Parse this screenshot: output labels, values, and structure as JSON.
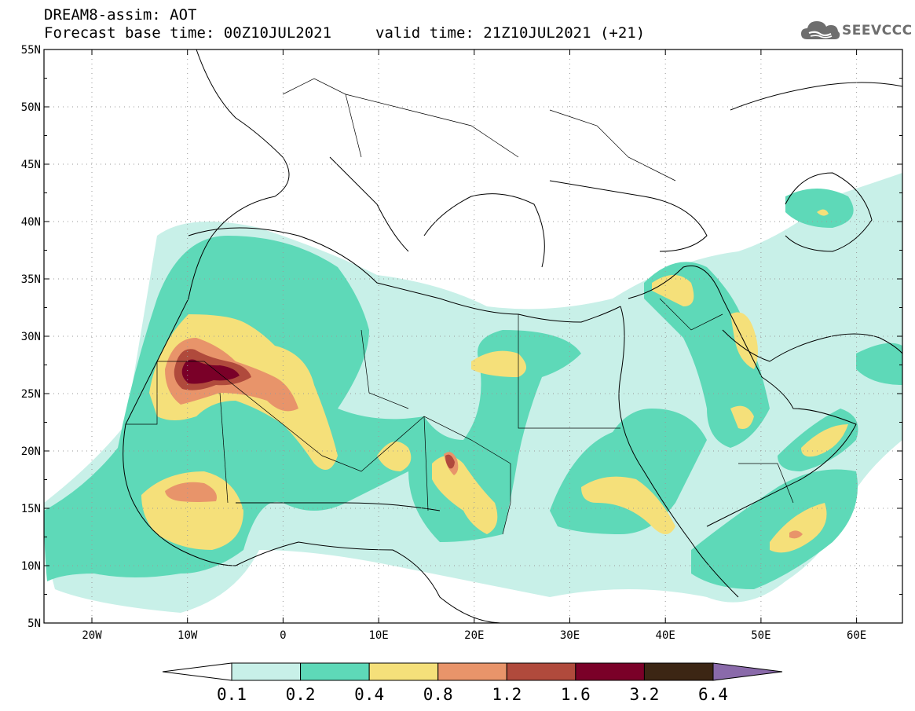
{
  "header": {
    "title": "DREAM8-assim: AOT",
    "base_time": "Forecast base time: 00Z10JUL2021",
    "valid_time": "valid time: 21Z10JUL2021 (+21)"
  },
  "logo": {
    "text": "SEEVCCC",
    "icon": "cloud-icon",
    "color": "#6e6e6e"
  },
  "map": {
    "lat_labels": [
      "55N",
      "50N",
      "45N",
      "40N",
      "35N",
      "30N",
      "25N",
      "20N",
      "15N",
      "10N",
      "5N"
    ],
    "lon_labels": [
      "20W",
      "10W",
      "0",
      "10E",
      "20E",
      "30E",
      "40E",
      "50E",
      "60E"
    ]
  },
  "legend": {
    "bins": [
      {
        "color": "#c8f0e8"
      },
      {
        "color": "#5ed9b8"
      },
      {
        "color": "#f5e07a"
      },
      {
        "color": "#e8946a"
      },
      {
        "color": "#b04a3c"
      },
      {
        "color": "#7a0028"
      },
      {
        "color": "#3c2614"
      }
    ],
    "under_color": "#ffffff",
    "over_color": "#8a6aaa",
    "labels": [
      "0.1",
      "0.2",
      "0.4",
      "0.8",
      "1.2",
      "1.6",
      "3.2",
      "6.4"
    ]
  }
}
